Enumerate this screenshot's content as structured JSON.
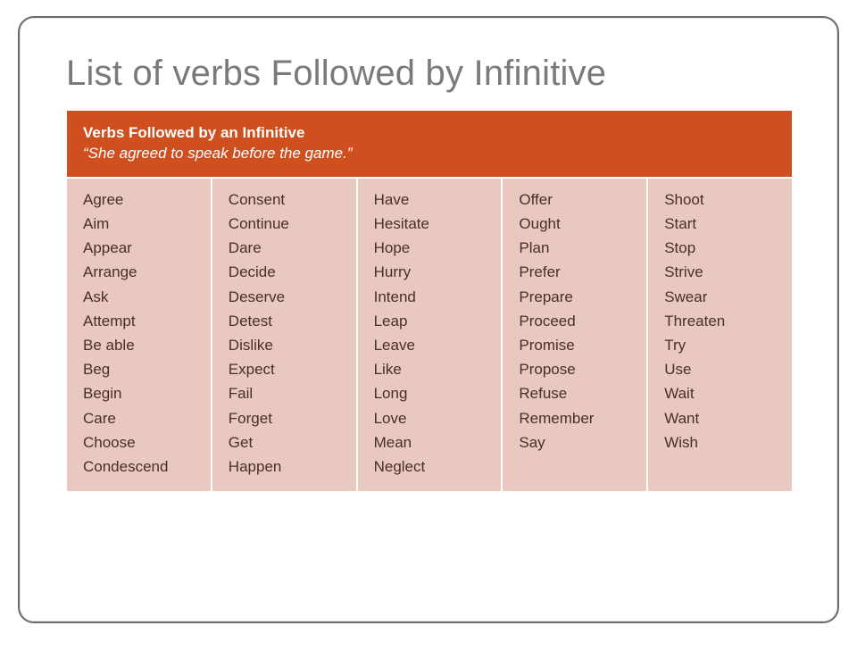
{
  "title": "List of verbs Followed by Infinitive",
  "header": {
    "line1": "Verbs Followed by an Infinitive",
    "line2_quote_open": "“",
    "line2_text": "She agreed to speak before the game.",
    "line2_quote_close": "”"
  },
  "columns": [
    [
      "Agree",
      "Aim",
      "Appear",
      "Arrange",
      "Ask",
      "Attempt",
      "Be able",
      "Beg",
      "Begin",
      "Care",
      "Choose",
      "Condescend"
    ],
    [
      "Consent",
      "Continue",
      "Dare",
      "Decide",
      "Deserve",
      "Detest",
      "Dislike",
      "Expect",
      "Fail",
      "Forget",
      "Get",
      "Happen"
    ],
    [
      "Have",
      "Hesitate",
      "Hope",
      "Hurry",
      "Intend",
      "Leap",
      "Leave",
      "Like",
      "Long",
      "Love",
      "Mean",
      "Neglect"
    ],
    [
      "Offer",
      "Ought",
      "Plan",
      "Prefer",
      "Prepare",
      "Proceed",
      "Promise",
      "Propose",
      "Refuse",
      "Remember",
      "Say"
    ],
    [
      "Shoot",
      "Start",
      "Stop",
      "Strive",
      "Swear",
      "Threaten",
      "Try",
      "Use",
      "Wait",
      "Want",
      "Wish"
    ]
  ],
  "colors": {
    "header_bg": "#cf4f1f",
    "body_bg": "#e8c8c0",
    "title_color": "#7a7a7a",
    "body_text": "#4a2f27"
  }
}
